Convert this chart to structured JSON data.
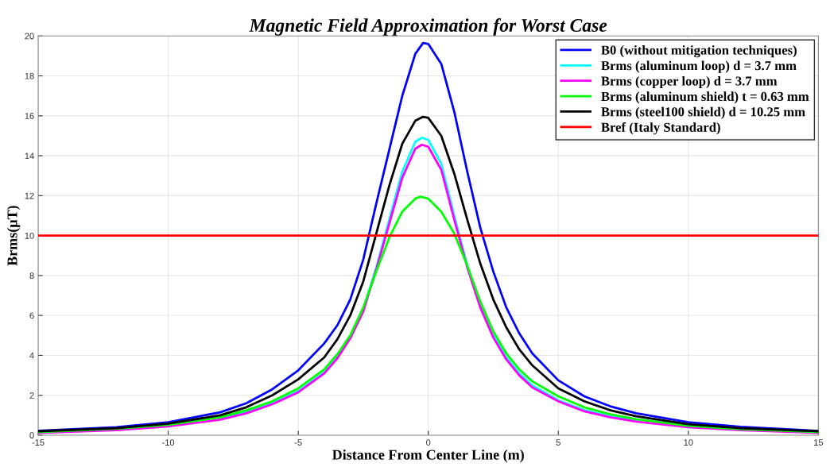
{
  "chart_data": {
    "type": "line",
    "title": "Magnetic Field Approximation for Worst Case",
    "xlabel": "Distance From Center Line (m)",
    "ylabel": "Brms(μT)",
    "xlim": [
      -15,
      15
    ],
    "xticks": [
      -15,
      -10,
      -5,
      0,
      5,
      10,
      15
    ],
    "ylim": [
      0,
      20
    ],
    "yticks": [
      0,
      2,
      4,
      6,
      8,
      10,
      12,
      14,
      16,
      18,
      20
    ],
    "grid": true,
    "legend": "top right",
    "marker": "none",
    "line_style": "solid",
    "series": [
      {
        "name": "B0 (without mitigation techniques)",
        "color": "#0000ff",
        "x": [
          -15,
          -12,
          -10,
          -8,
          -7,
          -6,
          -5,
          -4,
          -3.5,
          -3,
          -2.5,
          -2,
          -1.5,
          -1,
          -0.5,
          -0.2,
          0,
          0.5,
          1,
          1.5,
          2,
          2.5,
          3,
          3.5,
          4,
          5,
          6,
          7,
          8,
          10,
          12,
          15
        ],
        "values": [
          0.22,
          0.4,
          0.65,
          1.15,
          1.6,
          2.3,
          3.25,
          4.6,
          5.5,
          6.8,
          8.8,
          11.6,
          14.3,
          17.0,
          19.1,
          19.65,
          19.6,
          18.6,
          16.2,
          13.2,
          10.4,
          8.2,
          6.4,
          5.1,
          4.1,
          2.75,
          1.95,
          1.45,
          1.1,
          0.65,
          0.42,
          0.22
        ]
      },
      {
        "name": "Brms (aluminum loop) d = 3.7 mm",
        "color": "#00ffff",
        "x": [
          -8,
          -7,
          -6,
          -5,
          -4,
          -3.5,
          -3,
          -2.5,
          -2,
          -1.5,
          -1,
          -0.5,
          -0.25,
          0,
          0.5,
          1,
          1.5,
          2,
          2.5,
          3,
          3.5,
          4,
          5,
          6,
          7,
          8
        ],
        "values": [
          0.82,
          1.15,
          1.6,
          2.2,
          3.15,
          3.9,
          4.9,
          6.3,
          8.4,
          10.8,
          13.2,
          14.7,
          14.9,
          14.8,
          13.6,
          11.0,
          8.5,
          6.5,
          5.0,
          3.9,
          3.1,
          2.5,
          1.75,
          1.25,
          0.95,
          0.72
        ]
      },
      {
        "name": "Brms (copper loop) d = 3.7 mm",
        "color": "#ff00ff",
        "x": [
          -15,
          -12,
          -10,
          -8,
          -7,
          -6,
          -5,
          -4,
          -3.5,
          -3,
          -2.5,
          -2,
          -1.5,
          -1,
          -0.5,
          -0.25,
          0,
          0.5,
          1,
          1.5,
          2,
          2.5,
          3,
          3.5,
          4,
          5,
          6,
          7,
          8,
          10,
          12,
          15
        ],
        "values": [
          0.12,
          0.25,
          0.44,
          0.78,
          1.1,
          1.55,
          2.15,
          3.1,
          3.85,
          4.85,
          6.2,
          8.3,
          10.6,
          12.9,
          14.35,
          14.55,
          14.45,
          13.3,
          10.8,
          8.4,
          6.4,
          4.9,
          3.8,
          3.0,
          2.4,
          1.7,
          1.2,
          0.9,
          0.68,
          0.4,
          0.25,
          0.12
        ]
      },
      {
        "name": "Brms (aluminum shield) t = 0.63 mm",
        "color": "#00ff00",
        "x": [
          -15,
          -12,
          -10,
          -8,
          -7,
          -6,
          -5,
          -4,
          -3.5,
          -3,
          -2.5,
          -2,
          -1.5,
          -1,
          -0.5,
          -0.3,
          0,
          0.5,
          1,
          1.5,
          2,
          2.5,
          3,
          3.5,
          4,
          5,
          6,
          7,
          8,
          10,
          12,
          15
        ],
        "values": [
          0.16,
          0.32,
          0.52,
          0.9,
          1.25,
          1.7,
          2.35,
          3.3,
          4.05,
          5.0,
          6.4,
          8.2,
          9.9,
          11.2,
          11.85,
          11.95,
          11.85,
          11.2,
          10.1,
          8.5,
          6.7,
          5.2,
          4.1,
          3.3,
          2.7,
          1.95,
          1.4,
          1.05,
          0.8,
          0.47,
          0.3,
          0.16
        ]
      },
      {
        "name": "Brms (steel100 shield) d = 10.25 mm",
        "color": "#000000",
        "x": [
          -15,
          -12,
          -10,
          -8,
          -7,
          -6,
          -5,
          -4,
          -3.5,
          -3,
          -2.5,
          -2,
          -1.5,
          -1,
          -0.5,
          -0.2,
          0,
          0.5,
          1,
          1.5,
          2,
          2.5,
          3,
          3.5,
          4,
          5,
          6,
          7,
          8,
          10,
          12,
          15
        ],
        "values": [
          0.2,
          0.35,
          0.58,
          1.0,
          1.4,
          2.0,
          2.8,
          3.9,
          4.8,
          6.0,
          7.7,
          10.1,
          12.5,
          14.6,
          15.75,
          15.95,
          15.9,
          15.0,
          13.1,
          10.8,
          8.6,
          6.8,
          5.4,
          4.3,
          3.5,
          2.35,
          1.7,
          1.25,
          0.95,
          0.55,
          0.35,
          0.2
        ]
      }
    ],
    "ref_lines": [
      {
        "axis": "y",
        "value": 10,
        "label": "Bref (Italy Standard)",
        "color": "#ff0000",
        "line_style": "solid"
      }
    ]
  }
}
